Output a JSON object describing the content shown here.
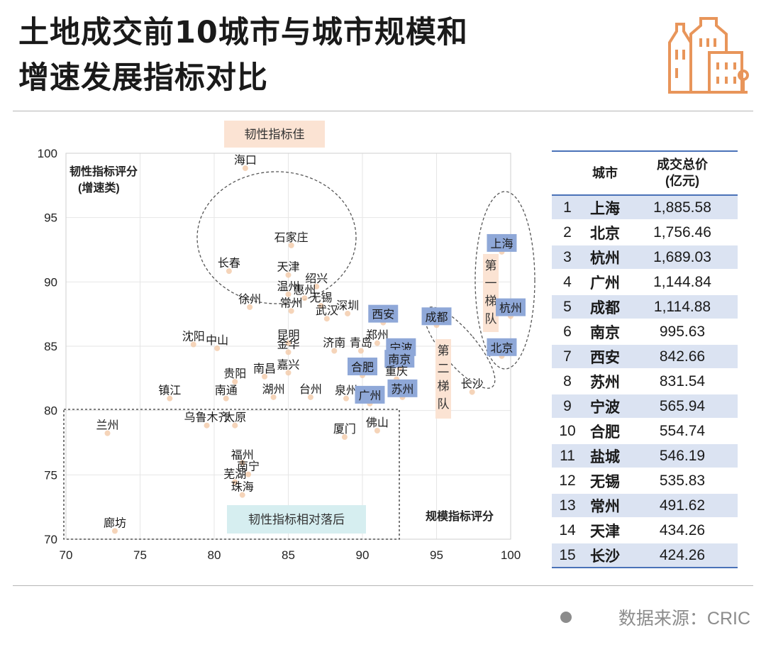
{
  "title_lines": [
    "土地成交前10城市与城市规模和",
    "增速发展指标对比"
  ],
  "source": "数据来源：CRIC",
  "chart_data": {
    "type": "scatter",
    "xlabel": "规模指标评分",
    "ylabel_lines": [
      "韧性指标评分",
      "(增速类)"
    ],
    "xlim": [
      70,
      100
    ],
    "ylim": [
      70,
      100
    ],
    "xticks": [
      70,
      75,
      80,
      85,
      90,
      95,
      100
    ],
    "yticks": [
      70,
      75,
      80,
      85,
      90,
      95,
      100
    ],
    "grid": true,
    "annotations": [
      {
        "text": "韧性指标佳",
        "color": "#fbe3d3"
      },
      {
        "text": "韧性指标相对落后",
        "color": "#d6eef0"
      },
      {
        "text": "第一梯队",
        "color": "#fbe3d3"
      },
      {
        "text": "第二梯队",
        "color": "#fbe3d3"
      }
    ],
    "points": [
      {
        "name": "海口",
        "x": 82.1,
        "y": 99.5,
        "tier": 0
      },
      {
        "name": "石家庄",
        "x": 85.2,
        "y": 93.5,
        "tier": 0
      },
      {
        "name": "长春",
        "x": 81,
        "y": 91.5,
        "tier": 0
      },
      {
        "name": "天津",
        "x": 85,
        "y": 91.2,
        "tier": 0
      },
      {
        "name": "绍兴",
        "x": 86.9,
        "y": 90.3,
        "tier": 0
      },
      {
        "name": "温州",
        "x": 85,
        "y": 89.7,
        "tier": 0
      },
      {
        "name": "惠州",
        "x": 86.1,
        "y": 89.4,
        "tier": 0
      },
      {
        "name": "无锡",
        "x": 87.2,
        "y": 88.8,
        "tier": 0
      },
      {
        "name": "徐州",
        "x": 82.4,
        "y": 88.7,
        "tier": 0
      },
      {
        "name": "常州",
        "x": 85.2,
        "y": 88.4,
        "tier": 0
      },
      {
        "name": "深圳",
        "x": 89,
        "y": 88.2,
        "tier": 0
      },
      {
        "name": "武汉",
        "x": 87.6,
        "y": 87.8,
        "tier": 0
      },
      {
        "name": "西安",
        "x": 91.4,
        "y": 87.5,
        "tier": 1
      },
      {
        "name": "成都",
        "x": 95,
        "y": 87.3,
        "tier": 1
      },
      {
        "name": "杭州",
        "x": 100,
        "y": 88,
        "tier": 1
      },
      {
        "name": "上海",
        "x": 99.4,
        "y": 93,
        "tier": 1
      },
      {
        "name": "北京",
        "x": 99.4,
        "y": 84.9,
        "tier": 1
      },
      {
        "name": "沈阳",
        "x": 78.6,
        "y": 85.8,
        "tier": 0
      },
      {
        "name": "中山",
        "x": 80.2,
        "y": 85.5,
        "tier": 0
      },
      {
        "name": "昆明",
        "x": 85,
        "y": 85.9,
        "tier": 0
      },
      {
        "name": "金华",
        "x": 85,
        "y": 85.2,
        "tier": 0
      },
      {
        "name": "郑州",
        "x": 91,
        "y": 85.9,
        "tier": 0
      },
      {
        "name": "济南",
        "x": 88.1,
        "y": 85.3,
        "tier": 0
      },
      {
        "name": "青岛",
        "x": 89.9,
        "y": 85.3,
        "tier": 0
      },
      {
        "name": "宁波",
        "x": 92.6,
        "y": 84.9,
        "tier": 1
      },
      {
        "name": "南京",
        "x": 92.5,
        "y": 84,
        "tier": 1
      },
      {
        "name": "合肥",
        "x": 90,
        "y": 83.4,
        "tier": 1
      },
      {
        "name": "嘉兴",
        "x": 85,
        "y": 83.6,
        "tier": 0
      },
      {
        "name": "南昌",
        "x": 83.4,
        "y": 83.3,
        "tier": 0
      },
      {
        "name": "贵阳",
        "x": 81.4,
        "y": 82.9,
        "tier": 0
      },
      {
        "name": "重庆",
        "x": 92.3,
        "y": 83.1,
        "tier": 0
      },
      {
        "name": "镇江",
        "x": 77,
        "y": 81.6,
        "tier": 0
      },
      {
        "name": "南通",
        "x": 80.8,
        "y": 81.6,
        "tier": 0
      },
      {
        "name": "湖州",
        "x": 84,
        "y": 81.7,
        "tier": 0
      },
      {
        "name": "台州",
        "x": 86.5,
        "y": 81.7,
        "tier": 0
      },
      {
        "name": "泉州",
        "x": 88.9,
        "y": 81.6,
        "tier": 0
      },
      {
        "name": "广州",
        "x": 90.5,
        "y": 81.2,
        "tier": 1
      },
      {
        "name": "苏州",
        "x": 92.7,
        "y": 81.7,
        "tier": 1
      },
      {
        "name": "长沙",
        "x": 97.4,
        "y": 82.1,
        "tier": 0
      },
      {
        "name": "兰州",
        "x": 72.8,
        "y": 78.9,
        "tier": 0
      },
      {
        "name": "乌鲁木齐",
        "x": 79.5,
        "y": 79.5,
        "tier": 0
      },
      {
        "name": "太原",
        "x": 81.4,
        "y": 79.5,
        "tier": 0
      },
      {
        "name": "佛山",
        "x": 91,
        "y": 79.1,
        "tier": 0
      },
      {
        "name": "厦门",
        "x": 88.8,
        "y": 78.6,
        "tier": 0
      },
      {
        "name": "福州",
        "x": 81.9,
        "y": 76.6,
        "tier": 0
      },
      {
        "name": "南宁",
        "x": 82.3,
        "y": 75.7,
        "tier": 0
      },
      {
        "name": "芜湖",
        "x": 81.4,
        "y": 75.1,
        "tier": 0
      },
      {
        "name": "珠海",
        "x": 81.9,
        "y": 74.1,
        "tier": 0
      },
      {
        "name": "廊坊",
        "x": 73.3,
        "y": 71.3,
        "tier": 0
      }
    ],
    "table": {
      "headers": [
        "",
        "城市",
        "成交总价\n(亿元)"
      ],
      "rows": [
        [
          "1",
          "上海",
          "1,885.58"
        ],
        [
          "2",
          "北京",
          "1,756.46"
        ],
        [
          "3",
          "杭州",
          "1,689.03"
        ],
        [
          "4",
          "广州",
          "1,144.84"
        ],
        [
          "5",
          "成都",
          "1,114.88"
        ],
        [
          "6",
          "南京",
          "995.63"
        ],
        [
          "7",
          "西安",
          "842.66"
        ],
        [
          "8",
          "苏州",
          "831.54"
        ],
        [
          "9",
          "宁波",
          "565.94"
        ],
        [
          "10",
          "合肥",
          "554.74"
        ],
        [
          "11",
          "盐城",
          "546.19"
        ],
        [
          "12",
          "无锡",
          "535.83"
        ],
        [
          "13",
          "常州",
          "491.62"
        ],
        [
          "14",
          "天津",
          "434.26"
        ],
        [
          "15",
          "长沙",
          "424.26"
        ]
      ]
    }
  },
  "colors": {
    "highlight_blue": "#8fa8d8",
    "highlight_peach": "#fbe3d3",
    "highlight_teal": "#d6eef0",
    "table_stripe": "#dbe3f2",
    "table_rule": "#4a72b8",
    "logo_orange": "#e8955a"
  }
}
